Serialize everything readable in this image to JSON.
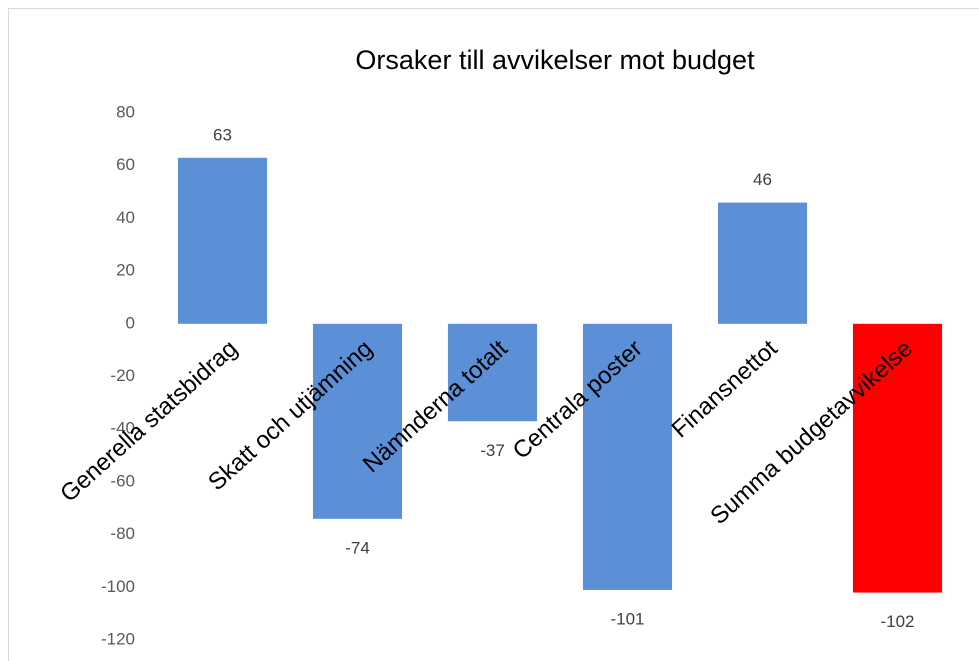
{
  "chart_data": {
    "type": "bar",
    "title": "Orsaker till avvikelser mot budget",
    "categories": [
      "Generella statsbidrag",
      "Skatt och utjämning",
      "Nämnderna totalt",
      "Centrala poster",
      "Finansnettot",
      "Summa budgetavvikelse"
    ],
    "values": [
      63,
      -74,
      -37,
      -101,
      46,
      -102
    ],
    "colors": [
      "#5b8fd6",
      "#5b8fd6",
      "#5b8fd6",
      "#5b8fd6",
      "#5b8fd6",
      "#ff0000"
    ],
    "ylim": [
      -120,
      80
    ],
    "yticks": [
      -120,
      -100,
      -80,
      -60,
      -40,
      -20,
      0,
      20,
      40,
      60,
      80
    ],
    "grid": false
  }
}
